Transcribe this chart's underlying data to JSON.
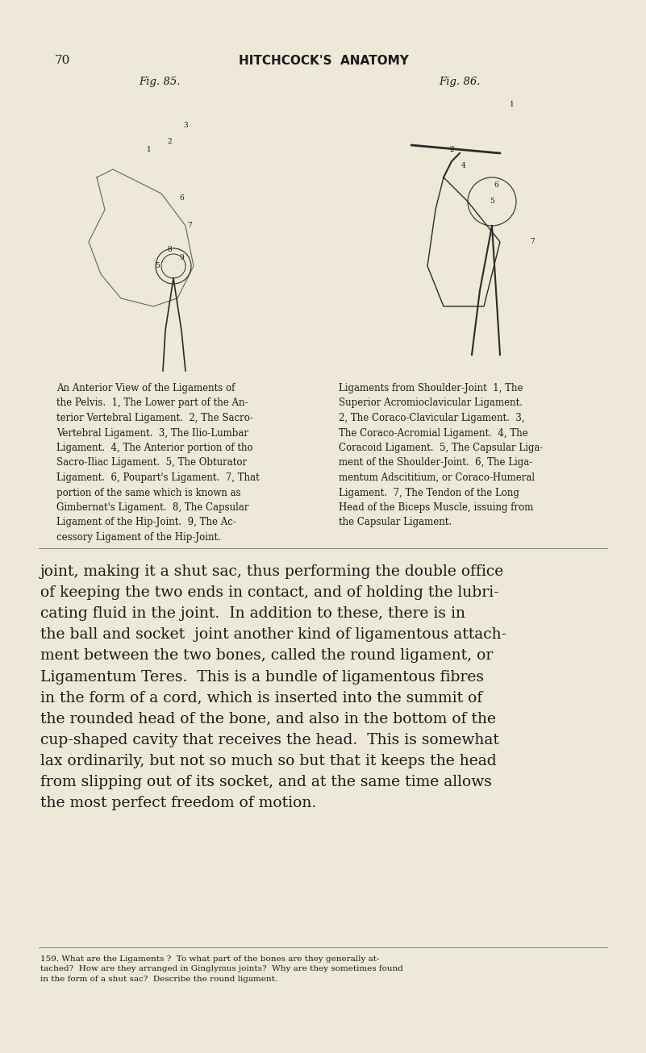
{
  "background_color": "#EDE8D8",
  "page_number": "70",
  "header_title": "HITCHCOCK'S  ANATOMY",
  "fig85_label": "Fig. 85.",
  "fig86_label": "Fig. 86.",
  "caption_left": "An Anterior View of the Ligaments of\nthe Pelvis.  1, The Lower part of the An-\nterior Vertebral Ligament.  2, The Sacro-\nVertebral Ligament.  3, The Ilio-Lumbar\nLigament.  4, The Anterior portion of tho\nSacro-Iliac Ligament.  5, The Obturator\nLigament.  6, Poupart's Ligament.  7, That\nportion of the same which is known as\nGimbernat's Ligament.  8, The Capsular\nLigament of the Hip-Joint.  9, The Ac-\ncessory Ligament of the Hip-Joint.",
  "caption_right": "Ligaments from Shoulder-Joint  1, The\nSuperior Acromioclavicular Ligament.\n2, The Coraco-Clavicular Ligament.  3,\nThe Coraco-Acromial Ligament.  4, The\nCoracoid Ligament.  5, The Capsular Liga-\nment of the Shoulder-Joint.  6, The Liga-\nmentum Adscititium, or Coraco-Humeral\nLigament.  7, The Tendon of the Long\nHead of the Biceps Muscle, issuing from\nthe Capsular Ligament.",
  "body_text": "joint, making it a shut sac, thus performing the double office\nof keeping the two ends in contact, and of holding the lubri-\ncating fluid in the joint.  In addition to these, there is in\nthe ball and socket  joint another kind of ligamentous attach-\nment between the two bones, called the round ligament, or\nLigamentum Teres.  This is a bundle of ligamentous fibres\nin the form of a cord, which is inserted into the summit of\nthe rounded head of the bone, and also in the bottom of the\ncup-shaped cavity that receives the head.  This is somewhat\nlax ordinarily, but not so much so but that it keeps the head\nfrom slipping out of its socket, and at the same time allows\nthe most perfect freedom of motion.",
  "footnote_text": "159. What are the Ligaments ?  To what part of the bones are they generally at-\ntached?  How are they arranged in Ginglymus joints?  Why are they sometimes found\nin the form of a shut sac?  Describe the round ligament.",
  "text_color": "#1a1a1a",
  "caption_fontsize": 8.5,
  "body_fontsize": 13.5,
  "header_fontsize": 11,
  "footnote_fontsize": 7.5
}
